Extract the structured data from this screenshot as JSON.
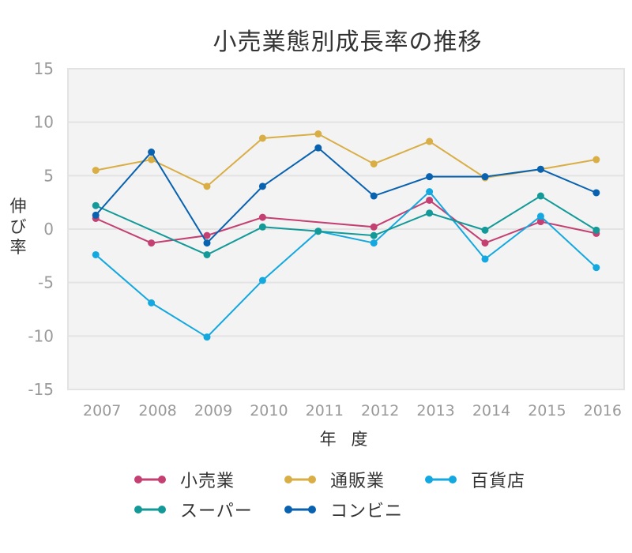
{
  "chart_data": {
    "type": "line",
    "title": "小売業態別成長率の推移",
    "xlabel": "年 度",
    "ylabel": "伸び率",
    "categories": [
      "2007",
      "2008",
      "2009",
      "2010",
      "2011",
      "2012",
      "2013",
      "2014",
      "2015",
      "2016"
    ],
    "ylim": [
      -15,
      15
    ],
    "yticks": [
      15,
      10,
      5,
      0,
      -5,
      -10,
      -15
    ],
    "grid": true,
    "legend_position": "bottom",
    "series": [
      {
        "name": "小売業",
        "color": "#C43F72",
        "values": [
          1.0,
          -1.3,
          -0.6,
          1.1,
          null,
          0.2,
          2.7,
          -1.3,
          0.7,
          -0.4
        ]
      },
      {
        "name": "通販業",
        "color": "#D9AE45",
        "values": [
          5.5,
          6.5,
          4.0,
          8.5,
          8.9,
          6.1,
          8.2,
          4.8,
          5.6,
          6.5
        ]
      },
      {
        "name": "百貨店",
        "color": "#13A8E0",
        "values": [
          -2.4,
          -6.9,
          -10.1,
          -4.8,
          -0.2,
          -1.3,
          3.5,
          -2.8,
          1.2,
          -3.6
        ]
      },
      {
        "name": "スーパー",
        "color": "#139A98",
        "values": [
          2.2,
          null,
          -2.4,
          0.2,
          -0.2,
          -0.6,
          1.5,
          -0.1,
          3.1,
          -0.1
        ]
      },
      {
        "name": "コンビニ",
        "color": "#0862B0",
        "values": [
          1.3,
          7.2,
          -1.3,
          4.0,
          7.6,
          3.1,
          4.9,
          4.9,
          5.6,
          3.4
        ]
      }
    ]
  },
  "legend": {
    "items": [
      {
        "label": "小売業",
        "color": "#C43F72"
      },
      {
        "label": "通販業",
        "color": "#D9AE45"
      },
      {
        "label": "百貨店",
        "color": "#13A8E0"
      },
      {
        "label": "スーパー",
        "color": "#139A98"
      },
      {
        "label": "コンビニ",
        "color": "#0862B0"
      }
    ]
  },
  "style": {
    "plot_bg": "#F3F3F3",
    "grid_color": "#E3E3E3",
    "tick_color": "#9A9A9A",
    "text_color": "#333333"
  }
}
